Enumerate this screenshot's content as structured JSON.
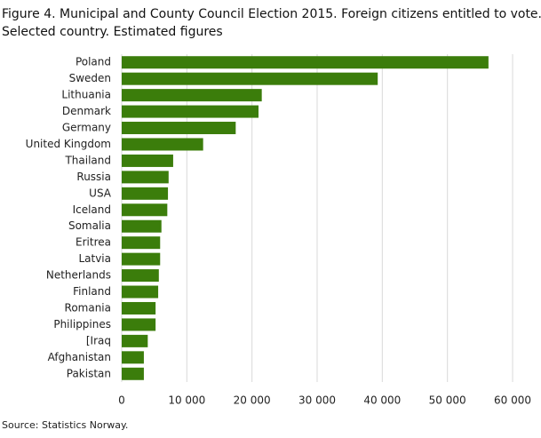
{
  "chart_data": {
    "type": "barh",
    "title": [
      "Figure 4. Municipal and County Council Election 2015. Foreign citizens entitled to vote.",
      "Selected country. Estimated figures"
    ],
    "categories": [
      "Poland",
      "Sweden",
      "Lithuania",
      "Denmark",
      "Germany",
      "United Kingdom",
      "Thailand",
      "Russia",
      "USA",
      "Iceland",
      "Somalia",
      "Eritrea",
      "Latvia",
      "Netherlands",
      "Finland",
      "Romania",
      "Philippines",
      "[Iraq",
      "Afghanistan",
      "Pakistan"
    ],
    "values": [
      56300,
      39300,
      21500,
      21000,
      17500,
      12500,
      7900,
      7200,
      7100,
      7000,
      6100,
      5900,
      5900,
      5700,
      5600,
      5200,
      5200,
      4000,
      3400,
      3400
    ],
    "color": "#3b7d0b",
    "xlim": [
      0,
      60000
    ],
    "xticks": [
      0,
      {
        "value": 10000,
        "label": "10 000"
      },
      {
        "value": 20000,
        "label": "20 000"
      },
      {
        "value": 30000,
        "label": "30 000"
      },
      {
        "value": 40000,
        "label": "40 000"
      },
      {
        "value": 50000,
        "label": "50 000"
      },
      {
        "value": 60000,
        "label": "60 000"
      }
    ],
    "grid": true,
    "source": "Source: Statistics Norway."
  }
}
